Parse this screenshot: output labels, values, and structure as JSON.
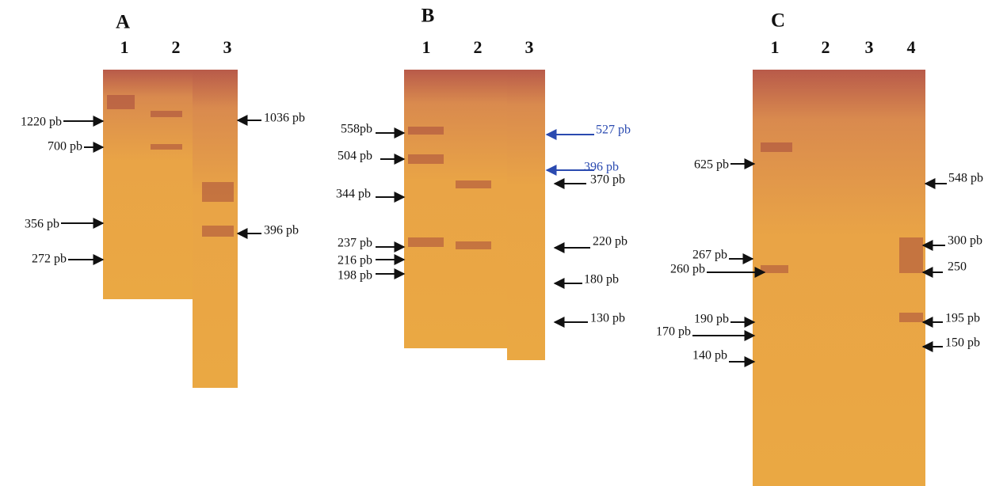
{
  "panels": [
    {
      "title": "A",
      "lanes": [
        "1",
        "2",
        "3"
      ],
      "left": [
        "1220 pb",
        "700 pb",
        "356 pb",
        "272 pb"
      ],
      "right": [
        "1036 pb",
        "396 pb"
      ]
    },
    {
      "title": "B",
      "lanes": [
        "1",
        "2",
        "3"
      ],
      "left": [
        "558pb",
        "504 pb",
        "344 pb",
        "237 pb",
        "216 pb",
        "198 pb"
      ],
      "right": [
        "527 pb",
        "396 pb",
        "370 pb",
        "220 pb",
        "180 pb",
        "130 pb"
      ]
    },
    {
      "title": "C",
      "lanes": [
        "1",
        "2",
        "3",
        "4"
      ],
      "left": [
        "625 pb",
        "267 pb",
        "260 pb",
        "190 pb",
        "170 pb",
        "140 pb"
      ],
      "right": [
        "548 pb",
        "300 pb",
        "250",
        "195 pb",
        "150 pb"
      ]
    }
  ]
}
